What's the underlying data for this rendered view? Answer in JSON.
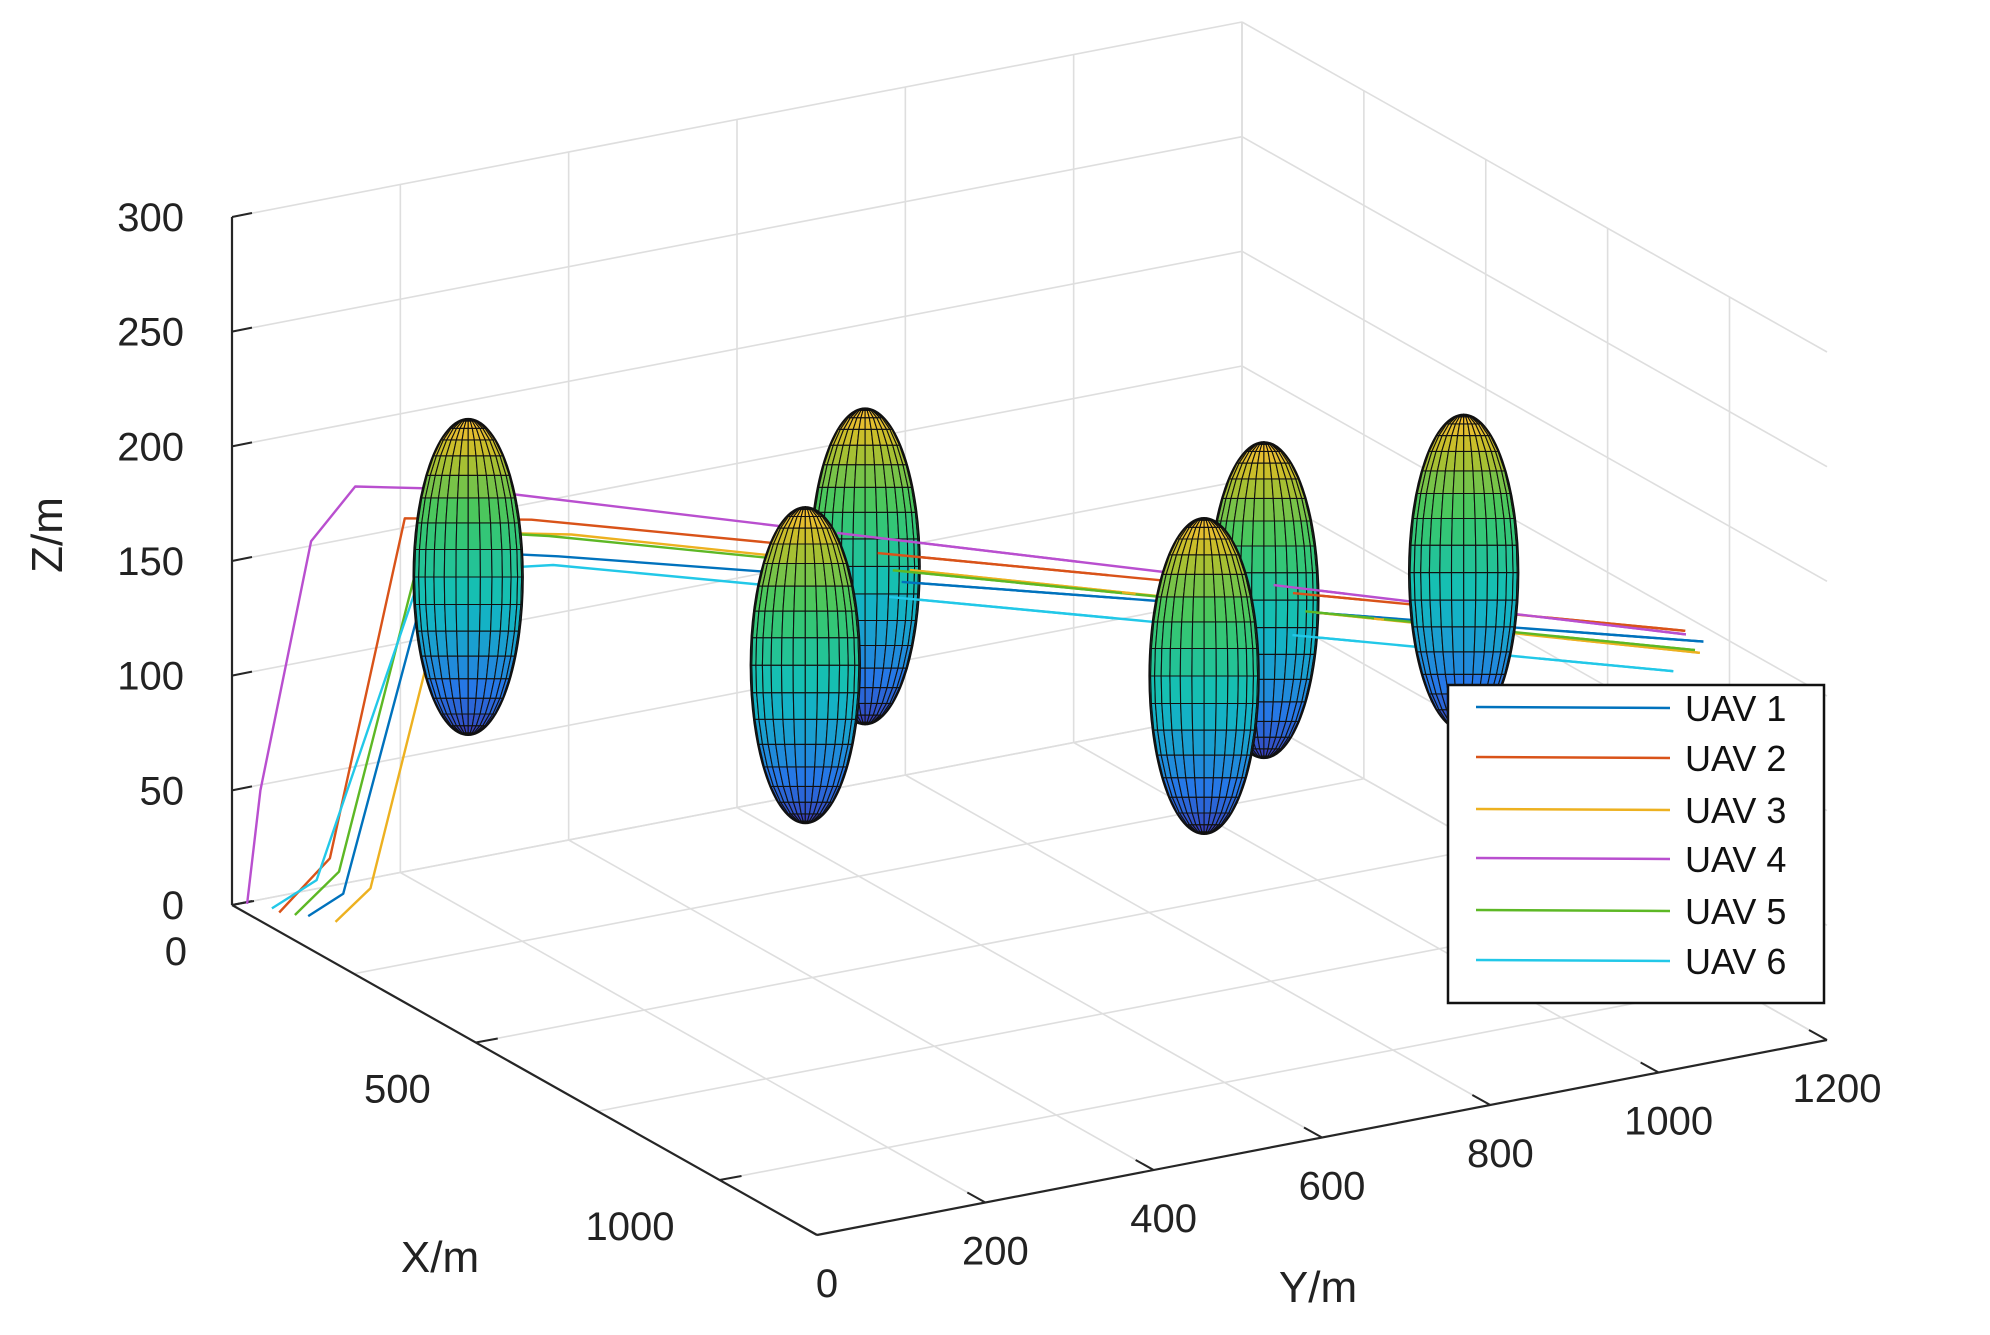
{
  "chart_data": {
    "type": "line3d",
    "title": "",
    "xlabel": "X/m",
    "ylabel": "Y/m",
    "zlabel": "Z/m",
    "xlim": [
      0,
      1200
    ],
    "ylim": [
      0,
      1200
    ],
    "zlim": [
      0,
      300
    ],
    "x_ticks": [
      "0",
      "500",
      "1000"
    ],
    "y_ticks": [
      "0",
      "200",
      "400",
      "600",
      "800",
      "1000",
      "1200"
    ],
    "z_ticks": [
      "0",
      "50",
      "100",
      "150",
      "200",
      "250",
      "300"
    ],
    "grid": true,
    "legend_position": "right",
    "series": [
      {
        "name": "UAV 1",
        "color": "#0072BD",
        "points": [
          [
            70,
            50,
            0
          ],
          [
            90,
            80,
            10
          ],
          [
            140,
            160,
            160
          ],
          [
            220,
            260,
            160
          ],
          [
            1050,
            1140,
            160
          ]
        ]
      },
      {
        "name": "UAV 2",
        "color": "#D95319",
        "points": [
          [
            45,
            30,
            0
          ],
          [
            80,
            70,
            25
          ],
          [
            130,
            130,
            175
          ],
          [
            200,
            240,
            175
          ],
          [
            1030,
            1130,
            163
          ]
        ]
      },
      {
        "name": "UAV 3",
        "color": "#EDB120",
        "points": [
          [
            100,
            65,
            0
          ],
          [
            120,
            95,
            15
          ],
          [
            165,
            175,
            170
          ],
          [
            230,
            270,
            170
          ],
          [
            1060,
            1130,
            157
          ]
        ]
      },
      {
        "name": "UAV 4",
        "color": "#B94FCF",
        "points": [
          [
            5,
            15,
            0
          ],
          [
            15,
            25,
            50
          ],
          [
            50,
            65,
            160
          ],
          [
            80,
            100,
            185
          ],
          [
            150,
            200,
            185
          ],
          [
            1040,
            1125,
            163
          ]
        ]
      },
      {
        "name": "UAV 5",
        "color": "#5DB825",
        "points": [
          [
            60,
            40,
            0
          ],
          [
            90,
            75,
            20
          ],
          [
            140,
            150,
            170
          ],
          [
            210,
            255,
            168
          ],
          [
            1050,
            1130,
            157
          ]
        ]
      },
      {
        "name": "UAV 6",
        "color": "#22C8E8",
        "points": [
          [
            30,
            30,
            0
          ],
          [
            70,
            60,
            15
          ],
          [
            130,
            150,
            150
          ],
          [
            210,
            260,
            155
          ],
          [
            1040,
            1110,
            148
          ]
        ]
      }
    ],
    "obstacles": [
      {
        "shape": "ellipsoid",
        "center": [
          260,
          130,
          165
        ],
        "radii": [
          45,
          45,
          60
        ]
      },
      {
        "shape": "ellipsoid",
        "center": [
          520,
          380,
          140
        ],
        "radii": [
          45,
          45,
          60
        ]
      },
      {
        "shape": "ellipsoid",
        "center": [
          470,
          480,
          170
        ],
        "radii": [
          45,
          45,
          60
        ]
      },
      {
        "shape": "ellipsoid",
        "center": [
          820,
          680,
          150
        ],
        "radii": [
          45,
          45,
          60
        ]
      },
      {
        "shape": "ellipsoid",
        "center": [
          770,
          780,
          170
        ],
        "radii": [
          45,
          45,
          60
        ]
      },
      {
        "shape": "ellipsoid",
        "center": [
          800,
          1000,
          170
        ],
        "radii": [
          45,
          45,
          60
        ]
      }
    ]
  }
}
